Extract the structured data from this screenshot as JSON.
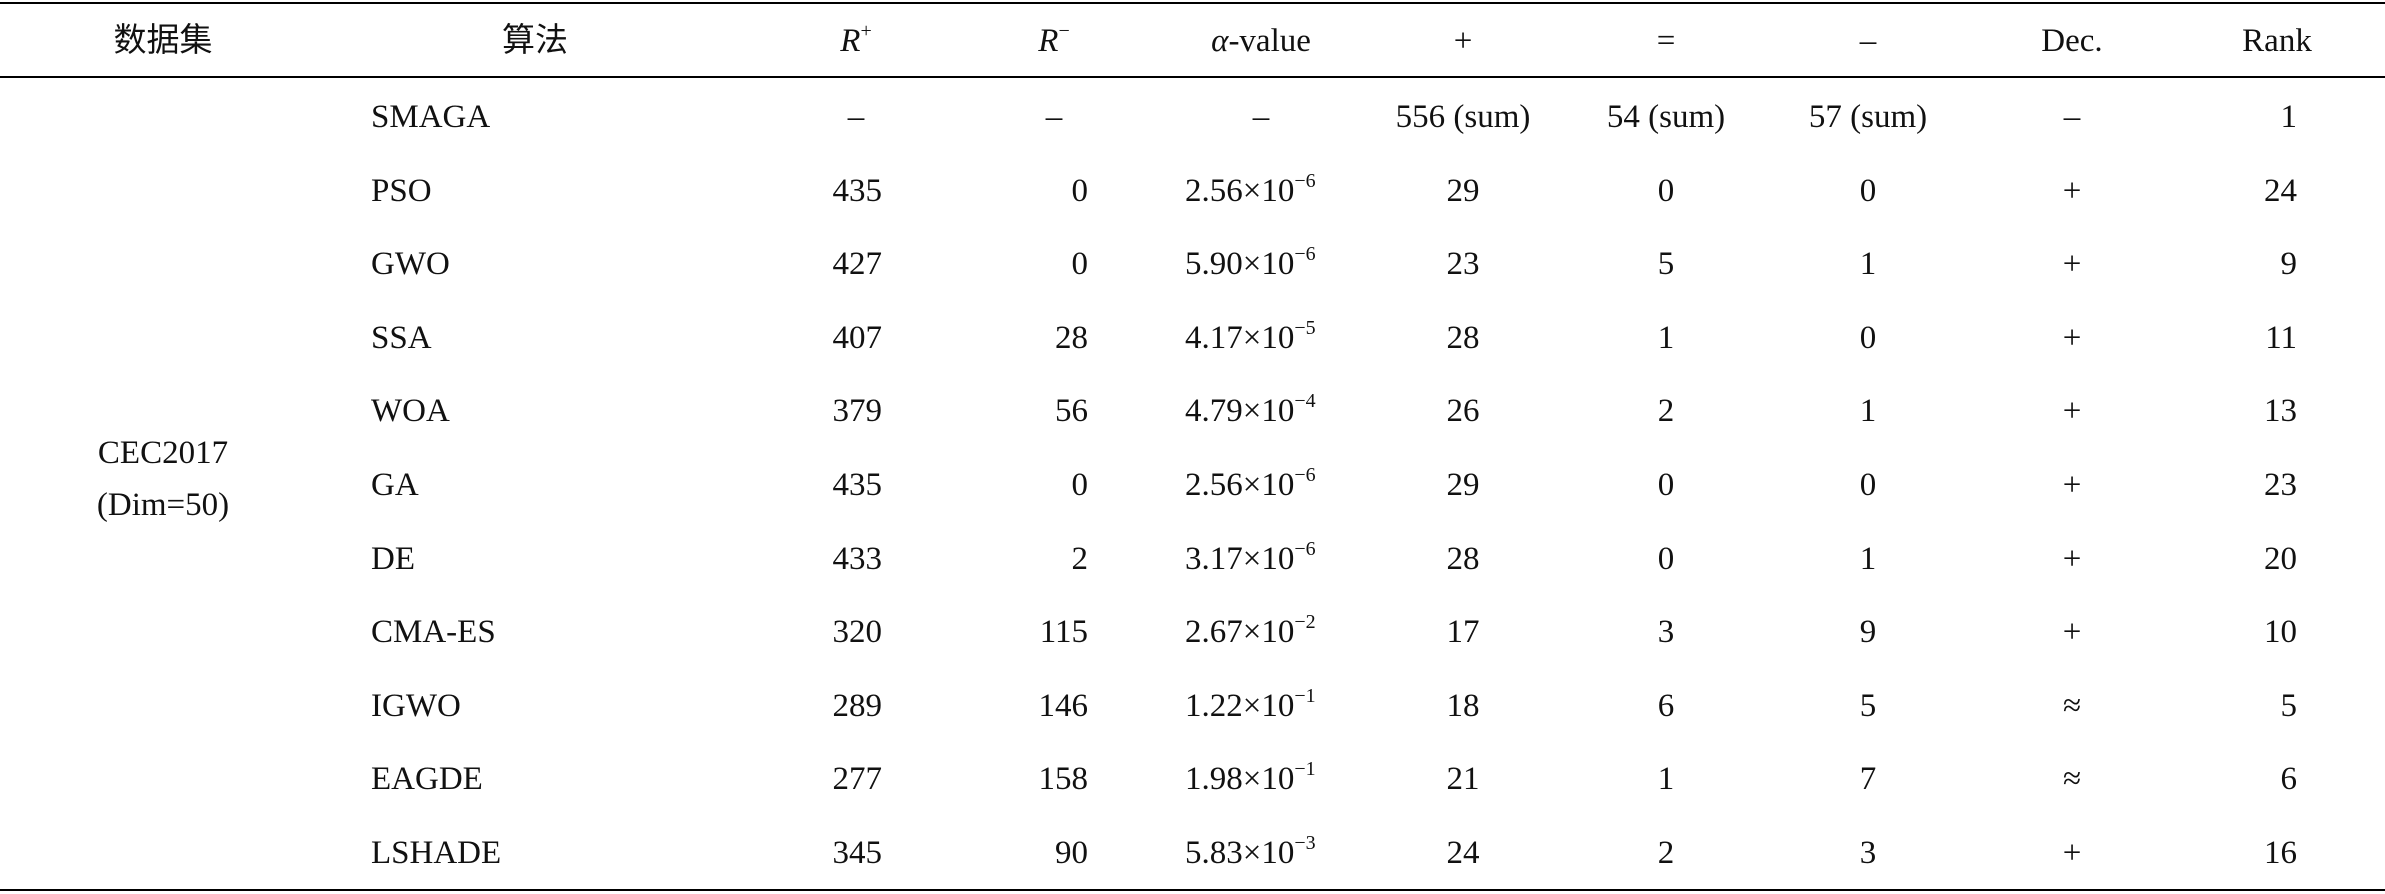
{
  "table": {
    "header": [
      "数据集",
      "算法",
      {
        "base": "R",
        "sup": "+"
      },
      {
        "base": "R",
        "sup": "−"
      },
      {
        "italic": "α",
        "rest": "-value"
      },
      "+",
      "=",
      "–",
      "Dec.",
      "Rank"
    ],
    "group": [
      "CEC2017",
      "(Dim=50)"
    ],
    "rows": [
      [
        "SMAGA",
        "–",
        "–",
        "–",
        "556 (sum)",
        "54 (sum)",
        "57 (sum)",
        "–",
        1
      ],
      [
        "PSO",
        435,
        0,
        {
          "mantissa": "2.56×10",
          "exp": "−6"
        },
        29,
        0,
        0,
        "+",
        24
      ],
      [
        "GWO",
        427,
        0,
        {
          "mantissa": "5.90×10",
          "exp": "−6"
        },
        23,
        5,
        1,
        "+",
        9
      ],
      [
        "SSA",
        407,
        28,
        {
          "mantissa": "4.17×10",
          "exp": "−5"
        },
        28,
        1,
        0,
        "+",
        11
      ],
      [
        "WOA",
        379,
        56,
        {
          "mantissa": "4.79×10",
          "exp": "−4"
        },
        26,
        2,
        1,
        "+",
        13
      ],
      [
        "GA",
        435,
        0,
        {
          "mantissa": "2.56×10",
          "exp": "−6"
        },
        29,
        0,
        0,
        "+",
        23
      ],
      [
        "DE",
        433,
        2,
        {
          "mantissa": "3.17×10",
          "exp": "−6"
        },
        28,
        0,
        1,
        "+",
        20
      ],
      [
        "CMA-ES",
        320,
        115,
        {
          "mantissa": "2.67×10",
          "exp": "−2"
        },
        17,
        3,
        9,
        "+",
        10
      ],
      [
        "IGWO",
        289,
        146,
        {
          "mantissa": "1.22×10",
          "exp": "−1"
        },
        18,
        6,
        5,
        "≈",
        5
      ],
      [
        "EAGDE",
        277,
        158,
        {
          "mantissa": "1.98×10",
          "exp": "−1"
        },
        21,
        1,
        7,
        "≈",
        6
      ],
      [
        "LSHADE",
        345,
        90,
        {
          "mantissa": "5.83×10",
          "exp": "−3"
        },
        24,
        2,
        3,
        "+",
        16
      ]
    ]
  }
}
